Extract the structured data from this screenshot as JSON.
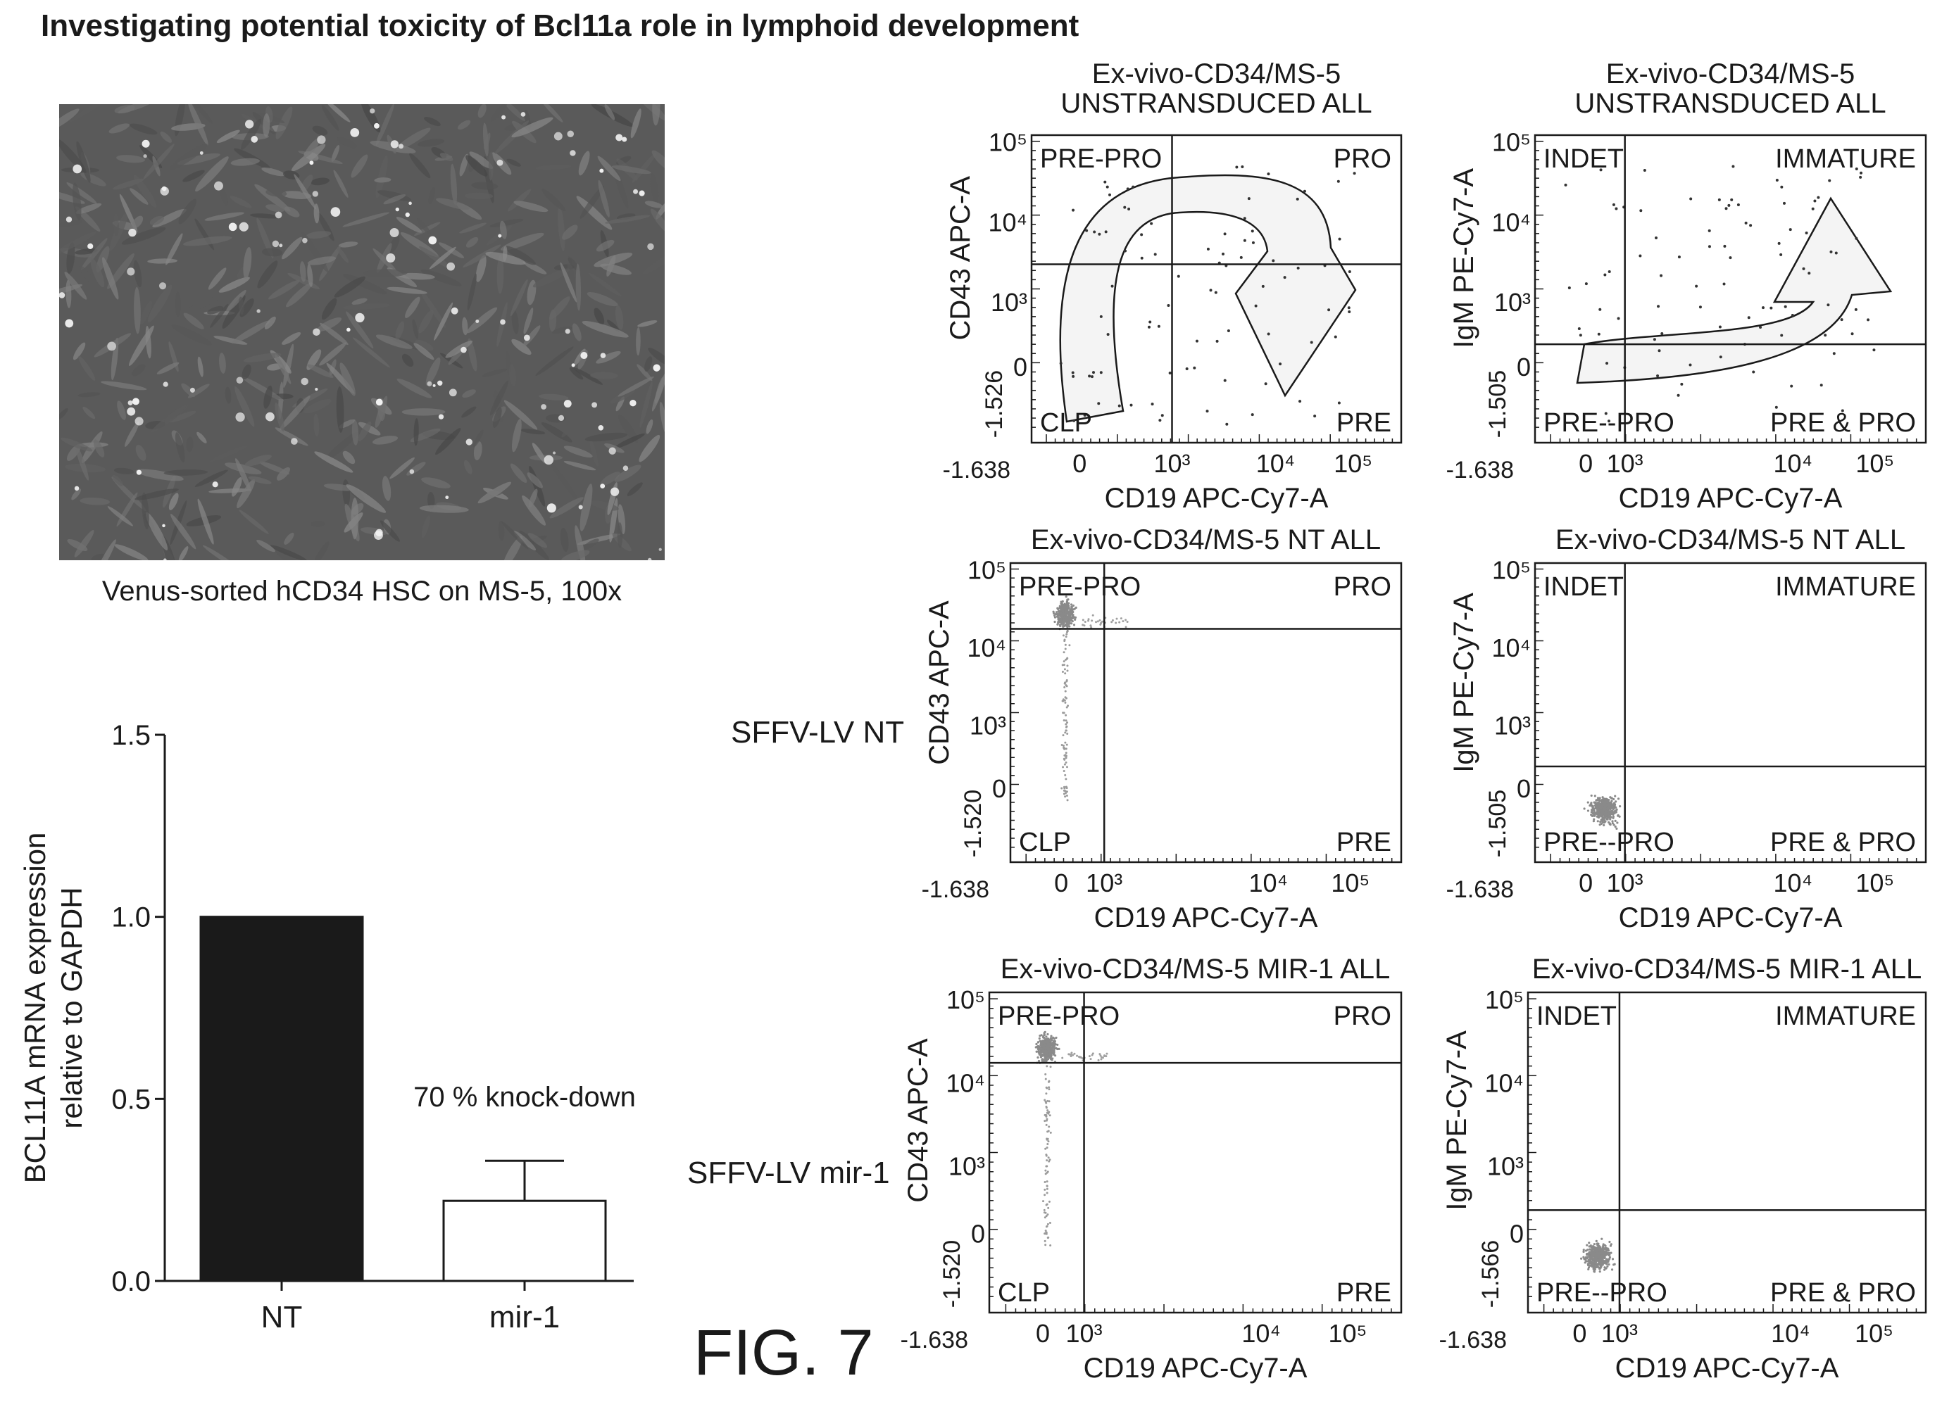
{
  "page": {
    "title": "Investigating potential toxicity of Bcl11a role in lymphoid development",
    "micrograph_caption": "Venus-sorted hCD34 HSC on MS-5, 100x",
    "figure_label": "FIG. 7",
    "row_labels": [
      "SFFV-LV NT",
      "SFFV-LV mir-1"
    ]
  },
  "chart_data": [
    {
      "type": "bar",
      "categories": [
        "NT",
        "mir-1"
      ],
      "values": [
        1.0,
        0.22
      ],
      "error_upper": [
        0,
        0.33
      ],
      "ylabel": [
        "BCL11A mRNA expression",
        "relative to GAPDH"
      ],
      "ylim": [
        0,
        1.5
      ],
      "yticks": [
        "0.0",
        "0.5",
        "1.0",
        "1.5"
      ],
      "annotation": "70 % knock-down",
      "bar_colors": [
        "#1a1a1a",
        "#ffffff"
      ]
    },
    {
      "type": "scatter",
      "subtype": "flow-cytometry-quadrant",
      "title": [
        "Ex-vivo-CD34/MS-5",
        "UNSTRANSDUCED ALL"
      ],
      "xlabel": "CD19 APC-Cy7-A",
      "ylabel": "CD43 APC-A",
      "quadrants": [
        "PRE-PRO",
        "PRO",
        "CLP",
        "PRE"
      ],
      "xmin": "-1.638",
      "ymin": "-1.526",
      "xticks": [
        "0",
        "10³",
        "10⁴",
        "10⁵"
      ],
      "yticks": [
        "10⁵",
        "10⁴",
        "10³",
        "0"
      ],
      "gate": {
        "x": "10³",
        "y": 6000
      },
      "illustration": "curved arrow"
    },
    {
      "type": "scatter",
      "subtype": "flow-cytometry-quadrant",
      "title": [
        "Ex-vivo-CD34/MS-5",
        "UNSTRANSDUCED ALL"
      ],
      "xlabel": "CD19 APC-Cy7-A",
      "ylabel": "IgM PE-Cy7-A",
      "quadrants": [
        "INDET",
        "IMMATURE",
        "PRE--PRO",
        "PRE & PRO"
      ],
      "xmin": "-1.638",
      "ymin": "-1.505",
      "xticks": [
        "0",
        "10³",
        "10⁴",
        "10⁵"
      ],
      "yticks": [
        "10⁵",
        "10⁴",
        "10³",
        "0"
      ],
      "gate": {
        "x": "10³",
        "y": 600
      },
      "illustration": "curved arrow"
    },
    {
      "type": "scatter",
      "subtype": "flow-cytometry-quadrant",
      "title": [
        "Ex-vivo-CD34/MS-5 NT ALL"
      ],
      "xlabel": "CD19 APC-Cy7-A",
      "ylabel": "CD43 APC-A",
      "quadrants": [
        "PRE-PRO",
        "PRO",
        "CLP",
        "PRE"
      ],
      "xmin": "-1.638",
      "ymin": "-1.520",
      "xticks": [
        "0",
        "10³",
        "10⁴",
        "10⁵"
      ],
      "yticks": [
        "10⁵",
        "10⁴",
        "10³",
        "0"
      ],
      "gate": {
        "x": "10³",
        "y": 6000
      },
      "population": "events clustered near CD19 0, CD43 10³–10⁴"
    },
    {
      "type": "scatter",
      "subtype": "flow-cytometry-quadrant",
      "title": [
        "Ex-vivo-CD34/MS-5 NT ALL"
      ],
      "xlabel": "CD19 APC-Cy7-A",
      "ylabel": "IgM PE-Cy7-A",
      "quadrants": [
        "INDET",
        "IMMATURE",
        "PRE--PRO",
        "PRE & PRO"
      ],
      "xmin": "-1.638",
      "ymin": "-1.505",
      "xticks": [
        "0",
        "10³",
        "10⁴",
        "10⁵"
      ],
      "yticks": [
        "10⁵",
        "10⁴",
        "10³",
        "0"
      ],
      "gate": {
        "x": "10³",
        "y": 600
      },
      "population": "events clustered near CD19 0, IgM 0"
    },
    {
      "type": "scatter",
      "subtype": "flow-cytometry-quadrant",
      "title": [
        "Ex-vivo-CD34/MS-5 MIR-1 ALL"
      ],
      "xlabel": "CD19 APC-Cy7-A",
      "ylabel": "CD43 APC-A",
      "quadrants": [
        "PRE-PRO",
        "PRO",
        "CLP",
        "PRE"
      ],
      "xmin": "-1.638",
      "ymin": "-1.520",
      "xticks": [
        "0",
        "10³",
        "10⁴",
        "10⁵"
      ],
      "yticks": [
        "10⁵",
        "10⁴",
        "10³",
        "0"
      ],
      "gate": {
        "x": "10³",
        "y": 6000
      },
      "population": "events clustered near CD19 0, CD43 10³–10⁴"
    },
    {
      "type": "scatter",
      "subtype": "flow-cytometry-quadrant",
      "title": [
        "Ex-vivo-CD34/MS-5 MIR-1 ALL"
      ],
      "xlabel": "CD19 APC-Cy7-A",
      "ylabel": "IgM PE-Cy7-A",
      "quadrants": [
        "INDET",
        "IMMATURE",
        "PRE--PRO",
        "PRE & PRO"
      ],
      "xmin": "-1.638",
      "ymin": "-1.566",
      "xticks": [
        "0",
        "10³",
        "10⁴",
        "10⁵"
      ],
      "yticks": [
        "10⁵",
        "10⁴",
        "10³",
        "0"
      ],
      "gate": {
        "x": "10³",
        "y": 600
      },
      "population": "events clustered near CD19 0, IgM 0"
    }
  ]
}
